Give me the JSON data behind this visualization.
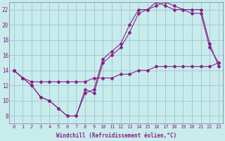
{
  "xlabel": "Windchill (Refroidissement éolien,°C)",
  "xlim": [
    -0.5,
    23.5
  ],
  "ylim": [
    7,
    23
  ],
  "xticks": [
    0,
    1,
    2,
    3,
    4,
    5,
    6,
    7,
    8,
    9,
    10,
    11,
    12,
    13,
    14,
    15,
    16,
    17,
    18,
    19,
    20,
    21,
    22,
    23
  ],
  "yticks": [
    8,
    10,
    12,
    14,
    16,
    18,
    20,
    22
  ],
  "background_color": "#c8ecec",
  "line_color": "#882288",
  "grid_color": "#99bbcc",
  "series": [
    {
      "x": [
        0,
        1,
        2,
        3,
        4,
        5,
        6,
        7,
        8,
        9,
        10,
        11,
        12,
        13,
        14,
        15,
        16,
        17,
        18,
        19,
        20,
        21,
        22,
        23
      ],
      "y": [
        14,
        13,
        12,
        10.5,
        10,
        9,
        8,
        8,
        11.5,
        11,
        15,
        16,
        17,
        19,
        21.5,
        22,
        22.5,
        23,
        22.5,
        22,
        21.5,
        21.5,
        17,
        15
      ]
    },
    {
      "x": [
        0,
        1,
        2,
        3,
        4,
        5,
        6,
        7,
        8,
        9,
        10,
        11,
        12,
        13,
        14,
        15,
        16,
        17,
        18,
        19,
        20,
        21,
        22,
        23
      ],
      "y": [
        14,
        13,
        12,
        10.5,
        10,
        9,
        8,
        8,
        11,
        11.5,
        15.5,
        16.5,
        17.5,
        20,
        22,
        22,
        23,
        22.5,
        22,
        22,
        22,
        22,
        17.5,
        14.5
      ]
    },
    {
      "x": [
        0,
        1,
        2,
        3,
        4,
        5,
        6,
        7,
        8,
        9,
        10,
        11,
        12,
        13,
        14,
        15,
        16,
        17,
        18,
        19,
        20,
        21,
        22,
        23
      ],
      "y": [
        14,
        13,
        12.5,
        12.5,
        12.5,
        12.5,
        12.5,
        12.5,
        12.5,
        13,
        13,
        13,
        13.5,
        13.5,
        14,
        14,
        14.5,
        14.5,
        14.5,
        14.5,
        14.5,
        14.5,
        14.5,
        15
      ]
    }
  ]
}
